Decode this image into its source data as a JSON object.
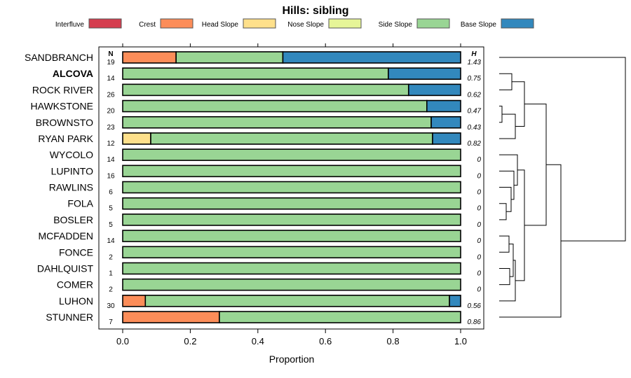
{
  "chart_data": {
    "type": "bar",
    "orientation": "horizontal-stacked",
    "title": "Hills: sibling",
    "xlabel": "Proportion",
    "ylabel": "",
    "xlim": [
      0,
      1
    ],
    "x_ticks": [
      "0.0",
      "0.2",
      "0.4",
      "0.6",
      "0.8",
      "1.0"
    ],
    "x_tick_values": [
      0,
      0.2,
      0.4,
      0.6,
      0.8,
      1.0
    ],
    "legend_placement": "top",
    "n_header": "N",
    "h_header": "H",
    "series": [
      {
        "name": "Interfluve",
        "color": "#D53E4F"
      },
      {
        "name": "Crest",
        "color": "#FC8D59"
      },
      {
        "name": "Head Slope",
        "color": "#FEE08B"
      },
      {
        "name": "Nose Slope",
        "color": "#E6F598"
      },
      {
        "name": "Side Slope",
        "color": "#99D594"
      },
      {
        "name": "Base Slope",
        "color": "#3288BD"
      }
    ],
    "categories": [
      {
        "name": "SANDBRANCH",
        "bold": false,
        "n": "19",
        "h": "1.43",
        "values": [
          0,
          0.158,
          0,
          0,
          0.316,
          0.526
        ]
      },
      {
        "name": "ALCOVA",
        "bold": true,
        "n": "14",
        "h": "0.75",
        "values": [
          0,
          0,
          0,
          0,
          0.786,
          0.214
        ]
      },
      {
        "name": "ROCK RIVER",
        "bold": false,
        "n": "26",
        "h": "0.62",
        "values": [
          0,
          0,
          0,
          0,
          0.846,
          0.154
        ]
      },
      {
        "name": "HAWKSTONE",
        "bold": false,
        "n": "20",
        "h": "0.47",
        "values": [
          0,
          0,
          0,
          0,
          0.9,
          0.1
        ]
      },
      {
        "name": "BROWNSTO",
        "bold": false,
        "n": "23",
        "h": "0.43",
        "values": [
          0,
          0,
          0,
          0,
          0.913,
          0.087
        ]
      },
      {
        "name": "RYAN PARK",
        "bold": false,
        "n": "12",
        "h": "0.82",
        "values": [
          0,
          0,
          0.083,
          0,
          0.834,
          0.083
        ]
      },
      {
        "name": "WYCOLO",
        "bold": false,
        "n": "14",
        "h": "0",
        "values": [
          0,
          0,
          0,
          0,
          1,
          0
        ]
      },
      {
        "name": "LUPINTO",
        "bold": false,
        "n": "16",
        "h": "0",
        "values": [
          0,
          0,
          0,
          0,
          1,
          0
        ]
      },
      {
        "name": "RAWLINS",
        "bold": false,
        "n": "6",
        "h": "0",
        "values": [
          0,
          0,
          0,
          0,
          1,
          0
        ]
      },
      {
        "name": "FOLA",
        "bold": false,
        "n": "5",
        "h": "0",
        "values": [
          0,
          0,
          0,
          0,
          1,
          0
        ]
      },
      {
        "name": "BOSLER",
        "bold": false,
        "n": "5",
        "h": "0",
        "values": [
          0,
          0,
          0,
          0,
          1,
          0
        ]
      },
      {
        "name": "MCFADDEN",
        "bold": false,
        "n": "14",
        "h": "0",
        "values": [
          0,
          0,
          0,
          0,
          1,
          0
        ]
      },
      {
        "name": "FONCE",
        "bold": false,
        "n": "2",
        "h": "0",
        "values": [
          0,
          0,
          0,
          0,
          1,
          0
        ]
      },
      {
        "name": "DAHLQUIST",
        "bold": false,
        "n": "1",
        "h": "0",
        "values": [
          0,
          0,
          0,
          0,
          1,
          0
        ]
      },
      {
        "name": "COMER",
        "bold": false,
        "n": "2",
        "h": "0",
        "values": [
          0,
          0,
          0,
          0,
          1,
          0
        ]
      },
      {
        "name": "LUHON",
        "bold": false,
        "n": "30",
        "h": "0.56",
        "values": [
          0,
          0.067,
          0,
          0,
          0.9,
          0.033
        ]
      },
      {
        "name": "STUNNER",
        "bold": false,
        "n": "7",
        "h": "0.86",
        "values": [
          0,
          0.286,
          0,
          0,
          0.714,
          0
        ]
      }
    ]
  }
}
